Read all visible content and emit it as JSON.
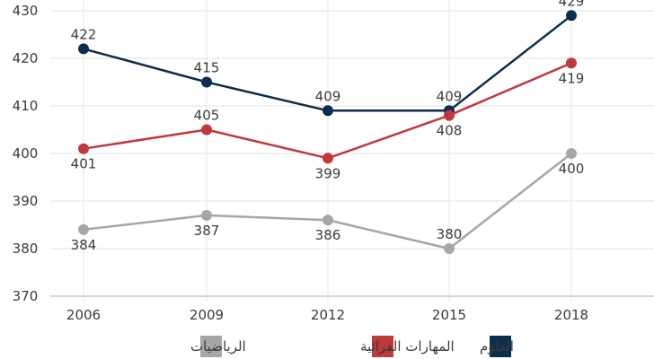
{
  "chart_data": {
    "type": "line",
    "x": [
      "2006",
      "2009",
      "2012",
      "2015",
      "2018"
    ],
    "ylim": [
      370,
      430
    ],
    "yticks": [
      370,
      380,
      390,
      400,
      410,
      420,
      430
    ],
    "grid": true,
    "legend_position": "bottom",
    "series": [
      {
        "name": "العلوم",
        "color": "#0b2e4f",
        "values": [
          422,
          415,
          409,
          409,
          429
        ],
        "labels": [
          "422",
          "415",
          "409",
          "409",
          "429"
        ]
      },
      {
        "name": "المهارات القرائية",
        "color": "#c0393b",
        "values": [
          401,
          405,
          399,
          408,
          419
        ],
        "labels": [
          "401",
          "405",
          "399",
          "408",
          "419"
        ]
      },
      {
        "name": "الرياضيات",
        "color": "#a6a6a6",
        "values": [
          384,
          387,
          386,
          380,
          400
        ],
        "labels": [
          "384",
          "387",
          "386",
          "380",
          "400"
        ]
      }
    ]
  }
}
